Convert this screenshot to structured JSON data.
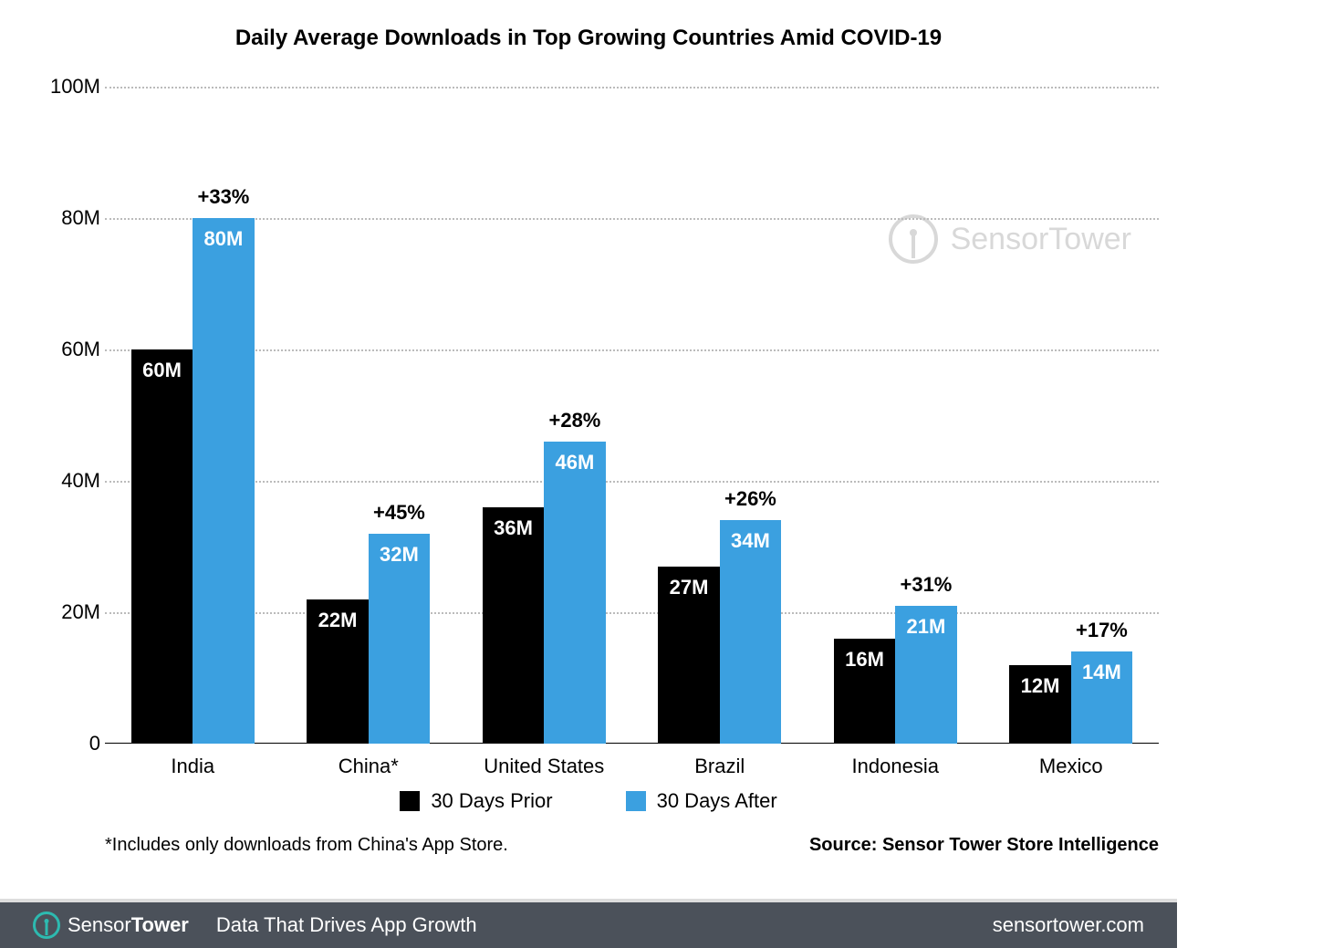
{
  "chart": {
    "type": "bar",
    "title": "Daily Average Downloads in Top Growing Countries Amid COVID-19",
    "title_fontsize": 24,
    "title_color": "#000000",
    "background_color": "#ffffff",
    "grid_color": "#bbbbbb",
    "grid_style": "dotted",
    "ylim": [
      0,
      100
    ],
    "y_ticks": [
      0,
      20,
      40,
      60,
      80,
      100
    ],
    "y_tick_labels": [
      "0",
      "20M",
      "40M",
      "60M",
      "80M",
      "100M"
    ],
    "y_tick_fontsize": 22,
    "categories": [
      "India",
      "China*",
      "United States",
      "Brazil",
      "Indonesia",
      "Mexico"
    ],
    "x_tick_fontsize": 22,
    "series": [
      {
        "name": "30 Days Prior",
        "color": "#000000",
        "values": [
          60,
          22,
          36,
          27,
          16,
          12
        ],
        "labels": [
          "60M",
          "22M",
          "36M",
          "27M",
          "16M",
          "12M"
        ]
      },
      {
        "name": "30 Days After",
        "color": "#3ba0e0",
        "values": [
          80,
          32,
          46,
          34,
          21,
          14
        ],
        "labels": [
          "80M",
          "32M",
          "46M",
          "34M",
          "21M",
          "14M"
        ]
      }
    ],
    "pct_labels": [
      "+33%",
      "+45%",
      "+28%",
      "+26%",
      "+31%",
      "+17%"
    ],
    "pct_fontsize": 22,
    "bar_value_fontsize": 22,
    "bar_width_ratio": 0.35,
    "group_gap_ratio": 0.3,
    "legend_fontsize": 22,
    "footnote": "*Includes only downloads from China's App Store.",
    "footnote_fontsize": 20,
    "source": "Source: Sensor Tower Store Intelligence",
    "source_fontsize": 20,
    "watermark_text": "SensorTower",
    "watermark_color": "#d8d8d8",
    "watermark_fontsize": 34
  },
  "footer": {
    "background_color": "#4b515a",
    "accent_color": "#2dbab0",
    "brand_prefix": "Sensor",
    "brand_suffix": "Tower",
    "brand_fontsize": 22,
    "tagline": "Data That Drives App Growth",
    "tagline_fontsize": 22,
    "url": "sensortower.com",
    "url_fontsize": 22
  }
}
